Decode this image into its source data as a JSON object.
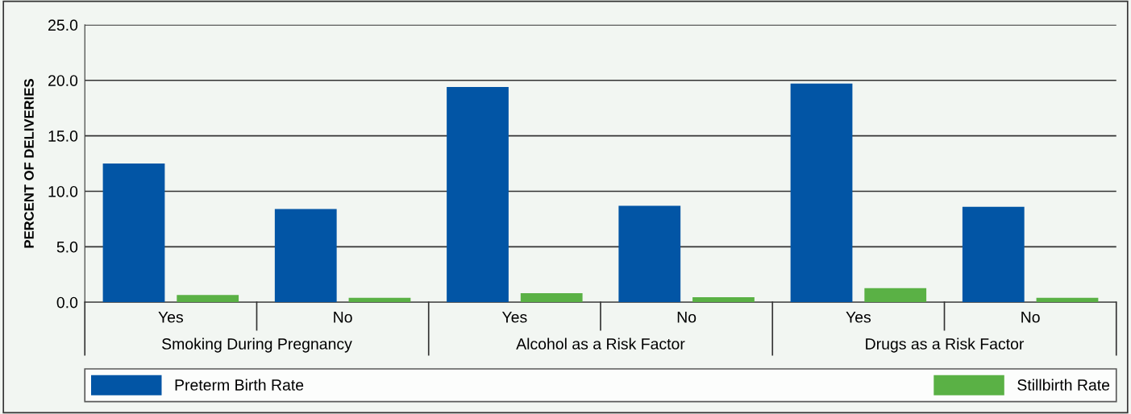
{
  "chart_data": {
    "type": "bar",
    "ylabel": "PERCENT OF DELIVERIES",
    "categories": [
      "Yes",
      "No",
      "Yes",
      "No",
      "Yes",
      "No"
    ],
    "series": [
      {
        "name": "Preterm Birth Rate",
        "color": "#0255a5",
        "values": [
          12.5,
          8.4,
          19.4,
          8.7,
          19.7,
          8.6
        ]
      },
      {
        "name": "Stillbirth Rate",
        "color": "#5ab145",
        "values": [
          0.66,
          0.39,
          0.82,
          0.45,
          1.26,
          0.39
        ]
      }
    ],
    "annotations": [
      "Smoking During Pregnancy",
      "Alcohol as a Risk Factor",
      "Drugs as a Risk Factor"
    ],
    "ylim": [
      0,
      25
    ],
    "yticks": [
      {
        "value": 0,
        "label": "0.0"
      },
      {
        "value": 5,
        "label": "5.0"
      },
      {
        "value": 10,
        "label": "10.0"
      },
      {
        "value": 15,
        "label": "15.0"
      },
      {
        "value": 20,
        "label": "20.0"
      },
      {
        "value": 25,
        "label": "25.0"
      }
    ],
    "grid": "y",
    "legend": "bottom"
  }
}
